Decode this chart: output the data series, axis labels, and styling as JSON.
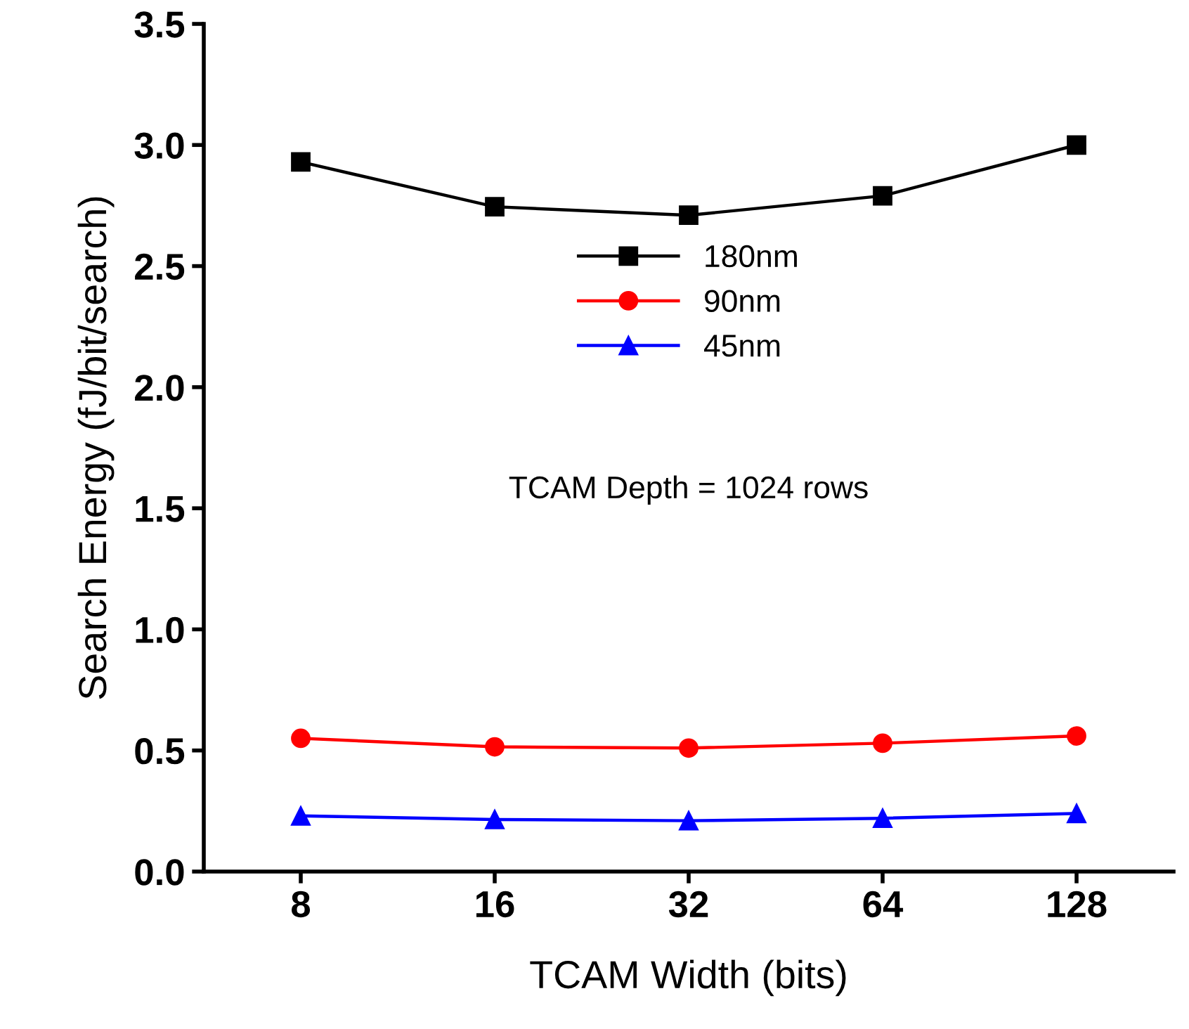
{
  "chart_data": {
    "type": "line",
    "xlabel": "TCAM Width (bits)",
    "ylabel": "Search Energy (fJ/bit/search)",
    "categories": [
      "8",
      "16",
      "32",
      "64",
      "128"
    ],
    "series": [
      {
        "name": "180nm",
        "color": "#000000",
        "marker": "square",
        "values": [
          2.93,
          2.745,
          2.71,
          2.79,
          3.0
        ]
      },
      {
        "name": "90nm",
        "color": "#ff0000",
        "marker": "circle",
        "values": [
          0.55,
          0.515,
          0.51,
          0.53,
          0.56
        ]
      },
      {
        "name": "45nm",
        "color": "#0000ff",
        "marker": "triangle",
        "values": [
          0.23,
          0.215,
          0.21,
          0.22,
          0.24
        ]
      }
    ],
    "ylim": [
      0,
      3.5
    ],
    "yticks": [
      {
        "value": 0,
        "label": "0.0"
      },
      0.5,
      {
        "value": 1,
        "label": "1.0"
      },
      1.5,
      {
        "value": 2,
        "label": "2.0"
      },
      2.5,
      {
        "value": 3,
        "label": "3.0"
      },
      3.5
    ],
    "annotations": [
      "TCAM Depth = 1024 rows"
    ],
    "legend": "center",
    "grid": false,
    "line_style": "solid"
  }
}
